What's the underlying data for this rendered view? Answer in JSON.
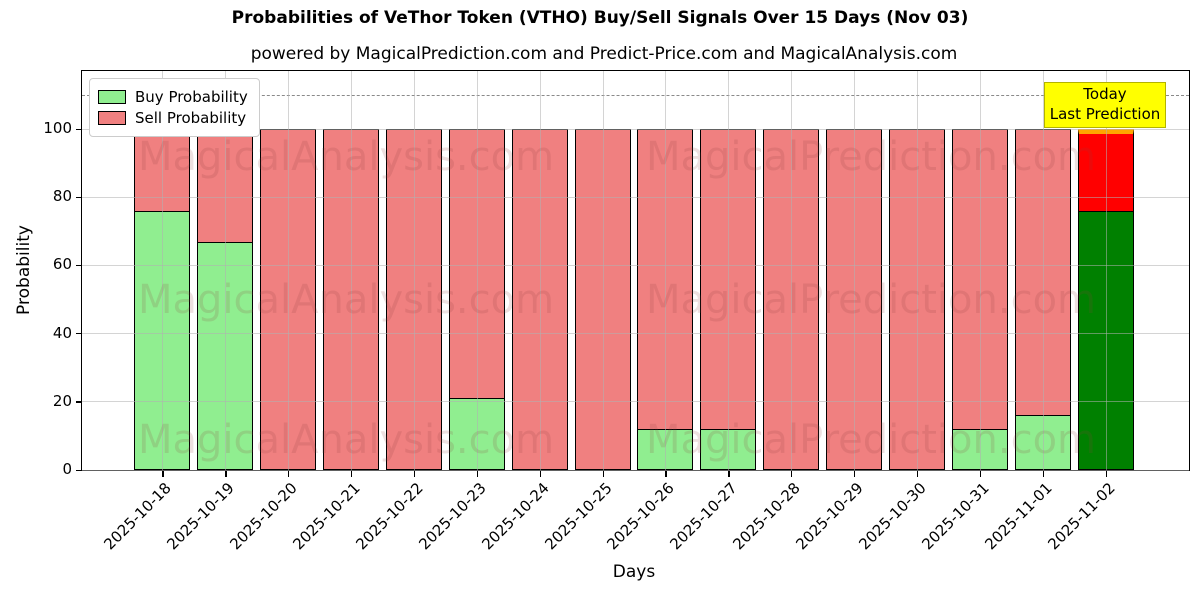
{
  "title": "Probabilities of VeThor Token (VTHO) Buy/Sell Signals Over 15 Days (Nov 03)",
  "subtitle": "powered by MagicalPrediction.com and Predict-Price.com and MagicalAnalysis.com",
  "annotation": {
    "line1": "Today",
    "line2": "Last Prediction"
  },
  "watermarks": {
    "left_text": "MagicalAnalysis.com",
    "right_text": "MagicalPrediction.com"
  },
  "legend": [
    {
      "label": "Buy Probability",
      "color": "#90ee90"
    },
    {
      "label": "Sell Probability",
      "color": "#f08080"
    }
  ],
  "colors": {
    "buy": "#90ee90",
    "sell": "#f08080",
    "today_buy": "#008000",
    "today_sell": "#ff0000",
    "today_edge": "#ffa500",
    "annotation_bg": "#ffff00",
    "grid": "#b0b0b0"
  },
  "chart_data": {
    "type": "bar",
    "stacked": true,
    "title": "Probabilities of VeThor Token (VTHO) Buy/Sell Signals Over 15 Days (Nov 03)",
    "xlabel": "Days",
    "ylabel": "Probability",
    "categories": [
      "2025-10-18",
      "2025-10-19",
      "2025-10-20",
      "2025-10-21",
      "2025-10-22",
      "2025-10-23",
      "2025-10-24",
      "2025-10-25",
      "2025-10-26",
      "2025-10-27",
      "2025-10-28",
      "2025-10-29",
      "2025-10-30",
      "2025-10-31",
      "2025-11-01",
      "2025-11-02"
    ],
    "series": [
      {
        "name": "Buy Probability",
        "color": "#90ee90",
        "values": [
          76,
          67,
          0,
          0,
          0,
          21,
          0,
          0,
          12,
          12,
          0,
          0,
          0,
          12,
          16,
          76
        ]
      },
      {
        "name": "Sell Probability",
        "color": "#f08080",
        "values": [
          24,
          33,
          100,
          100,
          100,
          79,
          100,
          100,
          88,
          88,
          100,
          100,
          100,
          88,
          84,
          24
        ]
      }
    ],
    "today_index": 15,
    "yticks": [
      0,
      20,
      40,
      60,
      80,
      100
    ],
    "ylim": [
      0,
      117
    ],
    "dashed_line_y": 110,
    "grid": true,
    "legend_position": "upper left"
  }
}
